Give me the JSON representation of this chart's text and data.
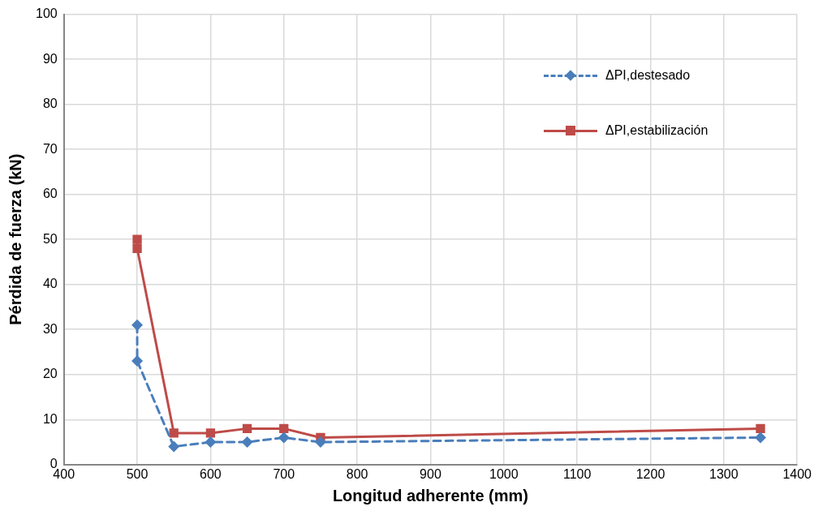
{
  "chart_data": {
    "type": "line",
    "xlabel": "Longitud adherente (mm)",
    "ylabel": "Pérdida de fuerza (kN)",
    "series": [
      {
        "name": "ΔPI,destesado",
        "color": "#4a7ebb",
        "line_style": "dashed",
        "marker": "diamond",
        "x": [
          500,
          500,
          550,
          600,
          650,
          700,
          750,
          1350
        ],
        "values": [
          31,
          23,
          4,
          5,
          5,
          6,
          5,
          6
        ]
      },
      {
        "name": "ΔPI,estabilización",
        "color": "#be4b48",
        "line_style": "solid",
        "marker": "square",
        "x": [
          500,
          500,
          550,
          600,
          650,
          700,
          750,
          1350
        ],
        "values": [
          50,
          48,
          7,
          7,
          8,
          8,
          6,
          8
        ]
      }
    ],
    "xlim": [
      400,
      1400
    ],
    "xticks": [
      400,
      500,
      600,
      700,
      800,
      900,
      1000,
      1100,
      1200,
      1300,
      1400
    ],
    "ylim": [
      0,
      100
    ],
    "yticks": [
      0,
      10,
      20,
      30,
      40,
      50,
      60,
      70,
      80,
      90,
      100
    ],
    "grid": true,
    "legend": "top right"
  }
}
